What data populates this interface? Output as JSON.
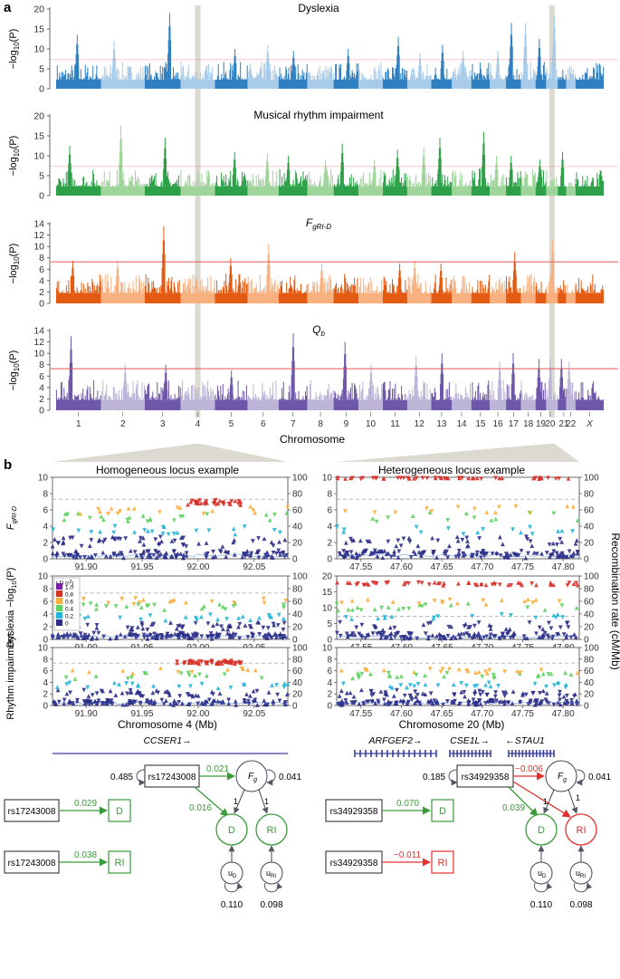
{
  "panel_labels": {
    "a": "a",
    "b": "b"
  },
  "colors": {
    "dyslexia": [
      "#2f7fc1",
      "#a7cbe8"
    ],
    "rhythm": [
      "#2ea049",
      "#9fd49a"
    ],
    "fgrid": [
      "#e35b12",
      "#f7b07e"
    ],
    "qb": [
      "#6e57a8",
      "#bcb5d8"
    ],
    "threshold": "#e25555",
    "highlight": "#d8d5cc",
    "green_path": "#3a9a3a",
    "red_path": "#e03030",
    "gene": "#3b3f9e"
  },
  "panel_a": {
    "xlabel": "Chromosome",
    "ylabel_main": "−log",
    "ylabel_sub": "10",
    "ylabel_tail": "(P)",
    "chromosome_labels": [
      "1",
      "2",
      "3",
      "4",
      "5",
      "6",
      "7",
      "8",
      "9",
      "10",
      "11",
      "12",
      "13",
      "14",
      "15",
      "16",
      "17",
      "18",
      "19",
      "20",
      "21",
      "22",
      "X"
    ],
    "highlight_chromosomes": [
      "4",
      "20"
    ],
    "genome_wide_threshold": 7.3,
    "plots": [
      {
        "key": "dyslexia",
        "title": "Dyslexia",
        "title_sub": "",
        "yticks": [
          0,
          5,
          10,
          15,
          20
        ],
        "ymax": 20
      },
      {
        "key": "rhythm",
        "title": "Musical rhythm impairment",
        "title_sub": "",
        "yticks": [
          0,
          5,
          10,
          15,
          20
        ],
        "ymax": 20
      },
      {
        "key": "fgrid",
        "title": "F",
        "title_sub": "gRI-D",
        "yticks": [
          0,
          2,
          4,
          6,
          8,
          10,
          12,
          14
        ],
        "ymax": 14
      },
      {
        "key": "qb",
        "title": "Q",
        "title_sub": "b",
        "yticks": [
          0,
          2,
          4,
          6,
          8,
          10,
          12,
          14
        ],
        "ymax": 14
      }
    ]
  },
  "chart_data": [
    {
      "type": "scatter",
      "title": "Homogeneous locus example",
      "xlabel": "Chromosome 4 (Mb)",
      "xlim": [
        91.87,
        92.08
      ],
      "xticks": [
        "91.90",
        "91.95",
        "92.00",
        "92.05"
      ],
      "ylim": [
        0,
        10
      ],
      "yticks": [
        0,
        2,
        4,
        6,
        8,
        10
      ],
      "y2ticks": [
        0,
        20,
        40,
        60,
        80,
        100
      ],
      "rows": [
        {
          "ylabel": "F",
          "ylabel_sub": "gRI-D"
        },
        {
          "ylabel": "Dyslexia −log",
          "ylabel_sub": "10",
          "ylabel_tail": "(P)"
        },
        {
          "ylabel": "Rhythm impairment",
          "ylabel_sub": ""
        }
      ]
    },
    {
      "type": "scatter",
      "title": "Heterogeneous locus example",
      "xlabel": "Chromosome 20 (Mb)",
      "xlim": [
        47.52,
        47.82
      ],
      "xticks": [
        "47.55",
        "47.60",
        "47.65",
        "47.70",
        "47.75",
        "47.80"
      ],
      "yticks_rows": [
        [
          0,
          2,
          4,
          6,
          8,
          10
        ],
        [
          0,
          5,
          10,
          15,
          20
        ],
        [
          0,
          2,
          4,
          6,
          8,
          10
        ]
      ],
      "y2ticks": [
        0,
        20,
        40,
        60,
        80,
        100
      ],
      "y2label": "Recombination rate (cM/Mb)"
    }
  ],
  "ld_legend": {
    "title": "LD (r",
    "title_sup": "2",
    "title_end": ")",
    "items": [
      {
        "label": "1.0",
        "color": "#7a1fa2"
      },
      {
        "label": "0.8",
        "color": "#d73027"
      },
      {
        "label": "0.6",
        "color": "#fdae3a"
      },
      {
        "label": "0.4",
        "color": "#5ed25e"
      },
      {
        "label": "0.2",
        "color": "#22b5d9"
      },
      {
        "label": "0",
        "color": "#2b2c86"
      }
    ]
  },
  "genes": {
    "left": [
      "CCSER1→"
    ],
    "right": [
      "ARFGEF2→",
      "CSE1L→",
      "←STAU1"
    ]
  },
  "path_left": {
    "snp": "rs17243008",
    "var_snp": "0.485",
    "to_fg": "0.021",
    "to_d": "0.016",
    "fg_var": "0.041",
    "fg": "F",
    "fg_sub": "g",
    "load_d": "1",
    "load_ri": "1",
    "d": "D",
    "ri": "RI",
    "ud": "u",
    "ud_sub": "D",
    "uri": "u",
    "uri_sub": "RI",
    "ud_var": "0.110",
    "uri_var": "0.098",
    "univar_d": "0.029",
    "univar_ri": "0.038"
  },
  "path_right": {
    "snp": "rs34929358",
    "var_snp": "0.185",
    "to_fg": "−0.006",
    "to_d": "0.039",
    "fg_var": "0.041",
    "fg": "F",
    "fg_sub": "g",
    "load_d": "1",
    "load_ri": "1",
    "d": "D",
    "ri": "RI",
    "ud": "u",
    "ud_sub": "D",
    "uri": "u",
    "uri_sub": "RI",
    "ud_var": "0.110",
    "uri_var": "0.098",
    "univar_d": "0.070",
    "univar_ri": "−0.011"
  }
}
